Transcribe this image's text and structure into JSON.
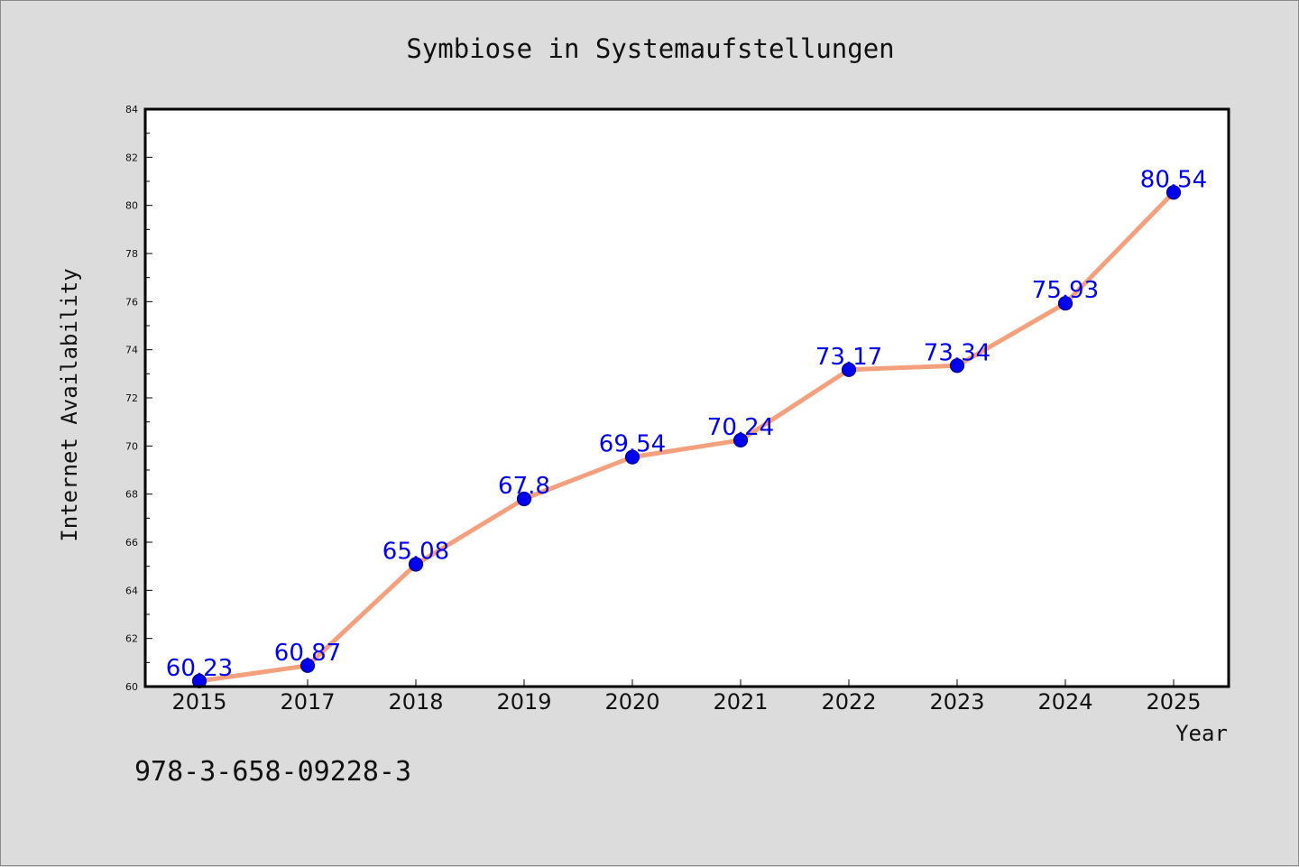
{
  "chart_data": {
    "type": "line",
    "title": "Symbiose in Systemaufstellungen",
    "xlabel": "Year",
    "ylabel": "Internet Availability",
    "categories": [
      "2015",
      "2017",
      "2018",
      "2019",
      "2020",
      "2021",
      "2022",
      "2023",
      "2024",
      "2025"
    ],
    "series": [
      {
        "values": [
          60.23,
          60.87,
          65.08,
          67.8,
          69.54,
          70.24,
          73.17,
          73.34,
          75.93,
          80.54
        ],
        "line_color": "#f4a07c",
        "marker_color": "#0000ee"
      }
    ],
    "data_label_color": "#0000ee",
    "ylim": [
      60,
      84
    ],
    "yticks": [
      60,
      62,
      64,
      66,
      68,
      70,
      72,
      74,
      76,
      78,
      80,
      82,
      84
    ],
    "grid": false,
    "legend": "none"
  },
  "footer": {
    "isbn": "978-3-658-09228-3"
  },
  "colors": {
    "background": "#dcdcdc",
    "plot_background": "#ffffff"
  }
}
